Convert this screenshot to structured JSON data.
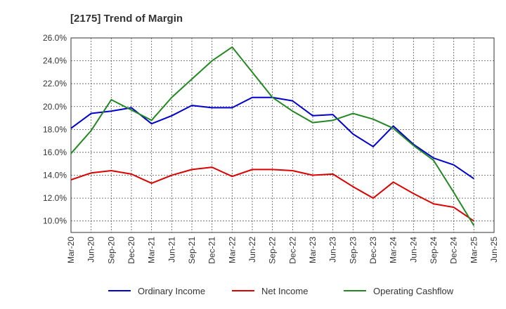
{
  "chart_data": {
    "type": "line",
    "title": "[2175]  Trend of Margin",
    "xlabel": "",
    "ylabel": "",
    "x_ticks": [
      "Mar-20",
      "Jun-20",
      "Sep-20",
      "Dec-20",
      "Mar-21",
      "Jun-21",
      "Sep-21",
      "Dec-21",
      "Mar-22",
      "Jun-22",
      "Sep-22",
      "Dec-22",
      "Mar-23",
      "Jun-23",
      "Sep-23",
      "Dec-23",
      "Mar-24",
      "Jun-24",
      "Sep-24",
      "Dec-24",
      "Mar-25",
      "Jun-25"
    ],
    "y_ticks": [
      "10.0%",
      "12.0%",
      "14.0%",
      "16.0%",
      "18.0%",
      "20.0%",
      "22.0%",
      "24.0%",
      "26.0%"
    ],
    "ylim": [
      9.0,
      26.0
    ],
    "grid": true,
    "legend_position": "bottom",
    "series": [
      {
        "name": "Ordinary Income",
        "color": "#0000cc",
        "x": [
          "Mar-20",
          "Jun-20",
          "Sep-20",
          "Dec-20",
          "Mar-21",
          "Jun-21",
          "Sep-21",
          "Dec-21",
          "Mar-22",
          "Jun-22",
          "Sep-22",
          "Dec-22",
          "Mar-23",
          "Jun-23",
          "Sep-23",
          "Dec-23",
          "Mar-24",
          "Jun-24",
          "Sep-24",
          "Dec-24",
          "Mar-25"
        ],
        "values": [
          18.1,
          19.4,
          19.6,
          19.9,
          18.5,
          19.2,
          20.1,
          19.9,
          19.9,
          20.8,
          20.8,
          20.5,
          19.2,
          19.3,
          17.6,
          16.5,
          18.3,
          16.7,
          15.5,
          14.9,
          13.7
        ]
      },
      {
        "name": "Net Income",
        "color": "#dd0000",
        "x": [
          "Mar-20",
          "Jun-20",
          "Sep-20",
          "Dec-20",
          "Mar-21",
          "Jun-21",
          "Sep-21",
          "Dec-21",
          "Mar-22",
          "Jun-22",
          "Sep-22",
          "Dec-22",
          "Mar-23",
          "Jun-23",
          "Sep-23",
          "Dec-23",
          "Mar-24",
          "Jun-24",
          "Sep-24",
          "Dec-24",
          "Mar-25"
        ],
        "values": [
          13.6,
          14.2,
          14.4,
          14.1,
          13.3,
          14.0,
          14.5,
          14.7,
          13.9,
          14.5,
          14.5,
          14.4,
          14.0,
          14.1,
          13.0,
          12.0,
          13.4,
          12.4,
          11.5,
          11.2,
          10.0
        ]
      },
      {
        "name": "Operating Cashflow",
        "color": "#228822",
        "x": [
          "Mar-20",
          "Jun-20",
          "Sep-20",
          "Dec-20",
          "Mar-21",
          "Jun-21",
          "Sep-21",
          "Dec-21",
          "Mar-22",
          "Jun-22",
          "Sep-22",
          "Dec-22",
          "Mar-23",
          "Jun-23",
          "Sep-23",
          "Dec-23",
          "Mar-24",
          "Jun-24",
          "Sep-24",
          "Dec-24",
          "Mar-25"
        ],
        "values": [
          15.9,
          17.9,
          20.6,
          19.7,
          18.8,
          20.8,
          22.4,
          24.0,
          25.2,
          23.0,
          20.8,
          19.6,
          18.6,
          18.8,
          19.4,
          18.9,
          18.1,
          16.6,
          15.3,
          12.5,
          9.6
        ]
      }
    ]
  }
}
